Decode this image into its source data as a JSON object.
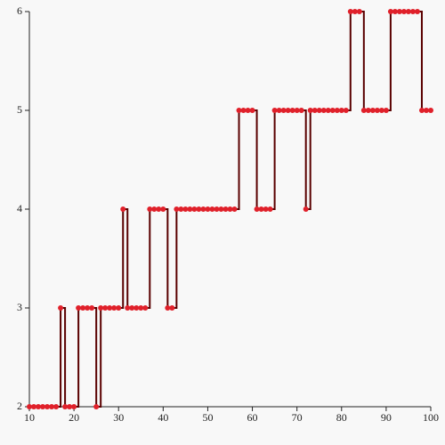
{
  "chart_data": {
    "type": "step",
    "x": [
      10,
      11,
      12,
      13,
      14,
      15,
      16,
      17,
      18,
      19,
      20,
      21,
      22,
      23,
      24,
      25,
      26,
      27,
      28,
      29,
      30,
      31,
      32,
      33,
      34,
      35,
      36,
      37,
      38,
      39,
      40,
      41,
      42,
      43,
      44,
      45,
      46,
      47,
      48,
      49,
      50,
      51,
      52,
      53,
      54,
      55,
      56,
      57,
      58,
      59,
      60,
      61,
      62,
      63,
      64,
      65,
      66,
      67,
      68,
      69,
      70,
      71,
      72,
      73,
      74,
      75,
      76,
      77,
      78,
      79,
      80,
      81,
      82,
      83,
      84,
      85,
      86,
      87,
      88,
      89,
      90,
      91,
      92,
      93,
      94,
      95,
      96,
      97,
      98,
      99,
      100
    ],
    "series": [
      {
        "color": "#5a0000",
        "marker_color": "#e0202a",
        "values": [
          2,
          2,
          2,
          2,
          2,
          2,
          2,
          3,
          2,
          2,
          2,
          3,
          3,
          3,
          3,
          2,
          3,
          3,
          3,
          3,
          3,
          4,
          3,
          3,
          3,
          3,
          3,
          4,
          4,
          4,
          4,
          3,
          3,
          4,
          4,
          4,
          4,
          4,
          4,
          4,
          4,
          4,
          4,
          4,
          4,
          4,
          4,
          5,
          5,
          5,
          5,
          4,
          4,
          4,
          4,
          5,
          5,
          5,
          5,
          5,
          5,
          5,
          4,
          5,
          5,
          5,
          5,
          5,
          5,
          5,
          5,
          5,
          6,
          6,
          6,
          5,
          5,
          5,
          5,
          5,
          5,
          6,
          6,
          6,
          6,
          6,
          6,
          6,
          5,
          5,
          5
        ]
      }
    ],
    "xlim": [
      10,
      100
    ],
    "ylim": [
      2,
      6
    ],
    "xticks": [
      10,
      20,
      30,
      40,
      50,
      60,
      70,
      80,
      90,
      100
    ],
    "yticks": [
      2,
      3,
      4,
      5,
      6
    ]
  }
}
